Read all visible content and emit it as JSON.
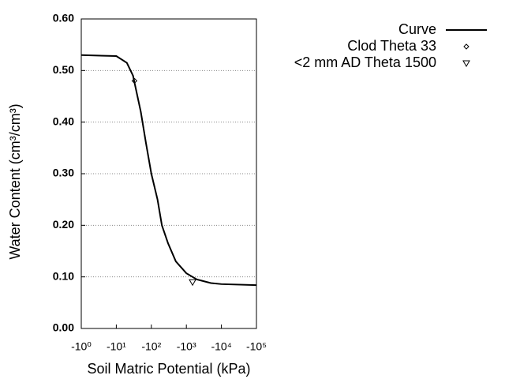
{
  "chart_data": {
    "type": "line",
    "xlabel": "Soil Matric Potential (kPa)",
    "ylabel": "Water Content (cm³/cm³)",
    "xscale": "log",
    "xlim": [
      1,
      100000
    ],
    "xticks": [
      {
        "value": 1,
        "label": "-10⁰"
      },
      {
        "value": 10,
        "label": "-10¹"
      },
      {
        "value": 100,
        "label": "-10²"
      },
      {
        "value": 1000,
        "label": "-10³"
      },
      {
        "value": 10000,
        "label": "-10⁴"
      },
      {
        "value": 100000,
        "label": "-10⁵"
      }
    ],
    "ylim": [
      0,
      0.6
    ],
    "yticks": [
      {
        "value": 0,
        "label": "0.00"
      },
      {
        "value": 0.1,
        "label": "0.10"
      },
      {
        "value": 0.2,
        "label": "0.20"
      },
      {
        "value": 0.3,
        "label": "0.30"
      },
      {
        "value": 0.4,
        "label": "0.40"
      },
      {
        "value": 0.5,
        "label": "0.50"
      },
      {
        "value": 0.6,
        "label": "0.60"
      }
    ],
    "grid": true,
    "legend": "top-right",
    "series": [
      {
        "name": "Curve",
        "type": "line",
        "color": "#000000",
        "x": [
          1,
          10,
          20,
          30,
          50,
          70,
          100,
          150,
          200,
          300,
          500,
          1000,
          2000,
          5000,
          10000,
          100000
        ],
        "values": [
          0.53,
          0.528,
          0.515,
          0.49,
          0.42,
          0.36,
          0.3,
          0.25,
          0.2,
          0.165,
          0.13,
          0.107,
          0.095,
          0.088,
          0.086,
          0.084
        ]
      },
      {
        "name": "Clod Theta 33",
        "type": "scatter",
        "marker": "diamond",
        "color": "#000000",
        "x": [
          33
        ],
        "values": [
          0.48
        ]
      },
      {
        "name": "<2 mm AD Theta 1500",
        "type": "scatter",
        "marker": "triangle-down",
        "color": "#000000",
        "x": [
          1500
        ],
        "values": [
          0.09
        ]
      }
    ]
  }
}
